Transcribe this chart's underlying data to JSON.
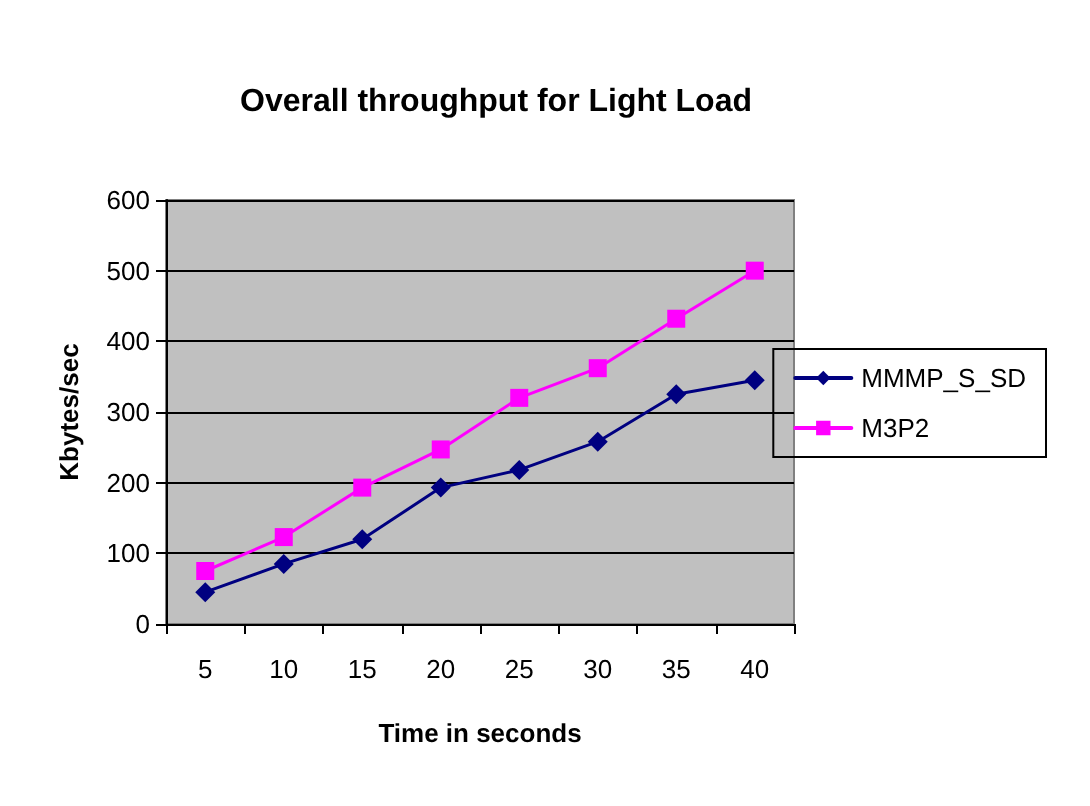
{
  "chart_data": {
    "type": "line",
    "title": "Overall throughput for Light Load",
    "xlabel": "Time in seconds",
    "ylabel": "Kbytes/sec",
    "categories": [
      "5",
      "10",
      "15",
      "20",
      "25",
      "30",
      "35",
      "40"
    ],
    "series": [
      {
        "name": "MMMP_S_SD",
        "color": "#000080",
        "marker": "diamond",
        "values": [
          45,
          85,
          120,
          193,
          218,
          258,
          325,
          345
        ]
      },
      {
        "name": "M3P2",
        "color": "#ff00ff",
        "marker": "square",
        "values": [
          75,
          123,
          193,
          247,
          320,
          362,
          432,
          500
        ]
      }
    ],
    "ylim": [
      0,
      600
    ],
    "yticks": [
      0,
      100,
      200,
      300,
      400,
      500,
      600
    ],
    "grid": "y",
    "legend": "right"
  }
}
